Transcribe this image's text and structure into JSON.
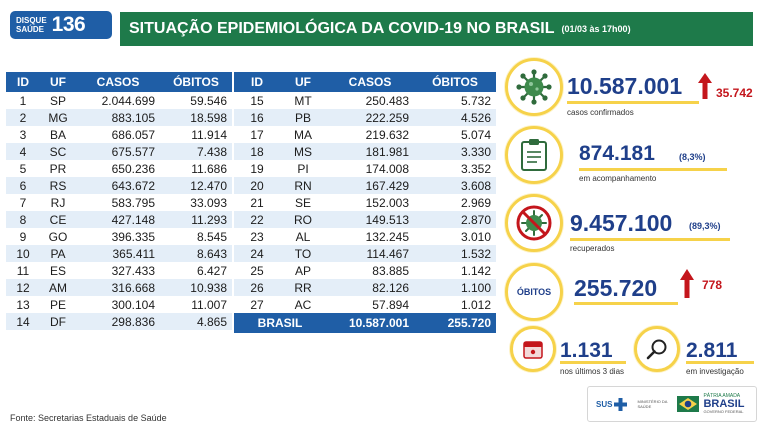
{
  "header": {
    "logo_line1": "DISQUE",
    "logo_line2": "SAÚDE",
    "logo_number": "136",
    "title": "SITUAÇÃO EPIDEMIOLÓGICA DA COVID-19 NO BRASIL",
    "date": "(01/03 às 17h00)"
  },
  "table_headers": [
    "ID",
    "UF",
    "CASOS",
    "ÓBITOS"
  ],
  "table_left": [
    [
      "1",
      "SP",
      "2.044.699",
      "59.546"
    ],
    [
      "2",
      "MG",
      "883.105",
      "18.598"
    ],
    [
      "3",
      "BA",
      "686.057",
      "11.914"
    ],
    [
      "4",
      "SC",
      "675.577",
      "7.438"
    ],
    [
      "5",
      "PR",
      "650.236",
      "11.686"
    ],
    [
      "6",
      "RS",
      "643.672",
      "12.470"
    ],
    [
      "7",
      "RJ",
      "583.795",
      "33.093"
    ],
    [
      "8",
      "CE",
      "427.148",
      "11.293"
    ],
    [
      "9",
      "GO",
      "396.335",
      "8.545"
    ],
    [
      "10",
      "PA",
      "365.411",
      "8.643"
    ],
    [
      "11",
      "ES",
      "327.433",
      "6.427"
    ],
    [
      "12",
      "AM",
      "316.668",
      "10.938"
    ],
    [
      "13",
      "PE",
      "300.104",
      "11.007"
    ],
    [
      "14",
      "DF",
      "298.836",
      "4.865"
    ]
  ],
  "table_right": [
    [
      "15",
      "MT",
      "250.483",
      "5.732"
    ],
    [
      "16",
      "PB",
      "222.259",
      "4.526"
    ],
    [
      "17",
      "MA",
      "219.632",
      "5.074"
    ],
    [
      "18",
      "MS",
      "181.981",
      "3.330"
    ],
    [
      "19",
      "PI",
      "174.008",
      "3.352"
    ],
    [
      "20",
      "RN",
      "167.429",
      "3.608"
    ],
    [
      "21",
      "SE",
      "152.003",
      "2.969"
    ],
    [
      "22",
      "RO",
      "149.513",
      "2.870"
    ],
    [
      "23",
      "AL",
      "132.245",
      "3.010"
    ],
    [
      "24",
      "TO",
      "114.467",
      "1.532"
    ],
    [
      "25",
      "AP",
      "83.885",
      "1.142"
    ],
    [
      "26",
      "RR",
      "82.126",
      "1.100"
    ],
    [
      "27",
      "AC",
      "57.894",
      "1.012"
    ]
  ],
  "total": {
    "label": "BRASIL",
    "cases": "10.587.001",
    "deaths": "255.720"
  },
  "stats": {
    "confirmed": {
      "value": "10.587.001",
      "delta": "35.742",
      "label": "casos confirmados"
    },
    "monitoring": {
      "value": "874.181",
      "pct": "(8,3%)",
      "label": "em acompanhamento"
    },
    "recovered": {
      "value": "9.457.100",
      "pct": "(89,3%)",
      "label": "recuperados"
    },
    "deaths": {
      "badge": "ÓBITOS",
      "value": "255.720",
      "delta": "778"
    },
    "recent": {
      "value": "1.131",
      "label": "nos últimos 3 dias"
    },
    "investigation": {
      "value": "2.811",
      "label": "em investigação"
    }
  },
  "footer": "Fonte: Secretarias Estaduais de Saúde",
  "partners": {
    "sus": "SUS",
    "ministry_line1": "MINISTÉRIO DA",
    "ministry_line2": "SAÚDE",
    "brasil_line1": "PÁTRIA AMADA",
    "brasil_line2": "BRASIL",
    "brasil_line3": "GOVERNO FEDERAL"
  },
  "colors": {
    "blue": "#1f5ea6",
    "green": "#1e7a4a",
    "yellow": "#f6d24a",
    "red": "#c4161c",
    "navy": "#1f3f8a"
  }
}
